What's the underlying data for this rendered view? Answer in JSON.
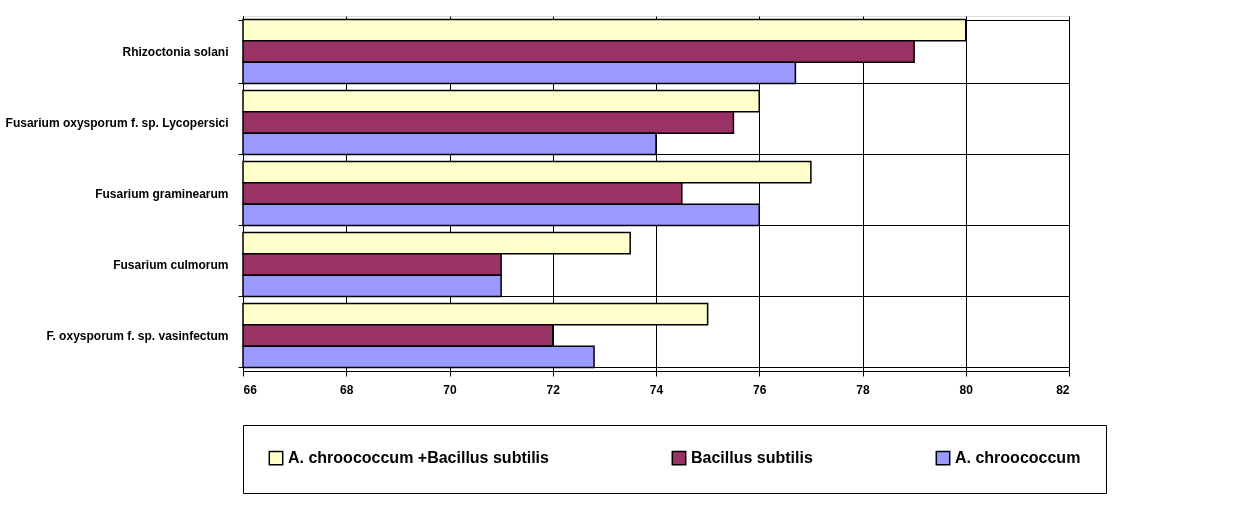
{
  "chart_data": {
    "type": "bar",
    "orientation": "horizontal",
    "categories": [
      "Rhizoctonia solani",
      "Fusarium oxysporum f. sp. Lycopersici",
      "Fusarium graminearum",
      "Fusarium culmorum",
      "F. oxysporum f. sp. vasinfectum"
    ],
    "series": [
      {
        "name": "A. chroococcum +Bacillus subtilis",
        "color": "#ffffcc",
        "values": [
          80,
          76,
          77,
          73.5,
          75
        ]
      },
      {
        "name": "Bacillus subtilis",
        "color": "#993366",
        "values": [
          79,
          75.5,
          74.5,
          71,
          72
        ]
      },
      {
        "name": "A. chroococcum",
        "color": "#9999ff",
        "values": [
          76.7,
          74,
          76,
          71,
          72.8
        ]
      }
    ],
    "xlim": [
      66,
      82
    ],
    "xticks": [
      66,
      68,
      70,
      72,
      74,
      76,
      78,
      80,
      82
    ],
    "grid": true,
    "legend": "bottom"
  }
}
